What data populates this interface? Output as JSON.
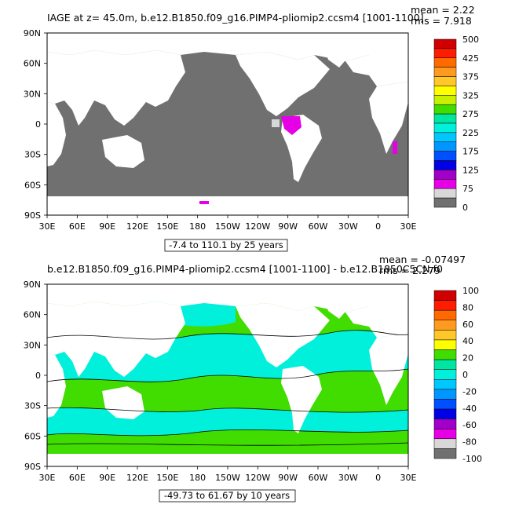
{
  "panels": [
    {
      "id": "top",
      "title": "IAGE at z=   45.0m, b.e12.B1850.f09_g16.PIMP4-pliomip2.ccsm4 [1001-1100]",
      "mean_text": "mean = 2.22",
      "rms_text": "rms = 7.918",
      "range_text": "-7.4 to 110.1 by 25 years",
      "lat_labels": [
        "90N",
        "60N",
        "30N",
        "0",
        "30S",
        "60S",
        "90S"
      ],
      "lon_labels": [
        "30E",
        "60E",
        "90E",
        "120E",
        "150E",
        "180",
        "150W",
        "120W",
        "90W",
        "60W",
        "30W",
        "0",
        "30E"
      ],
      "colorbar": {
        "labels": [
          "500",
          "425",
          "375",
          "325",
          "275",
          "225",
          "175",
          "125",
          "75",
          "0"
        ],
        "colors": [
          "#d00000",
          "#ff1c00",
          "#ff6a00",
          "#ff9a20",
          "#ffc828",
          "#ffff00",
          "#c8f000",
          "#41dc00",
          "#00e6a0",
          "#00f0dc",
          "#00c8ff",
          "#0096ff",
          "#0050ff",
          "#0000e6",
          "#a000c8",
          "#e600e6",
          "#d8d8d8",
          "#707070"
        ]
      }
    },
    {
      "id": "bottom",
      "title": "b.e12.B1850.f09_g16.PIMP4-pliomip2.ccsm4 [1001-1100] - b.e12.B1850C5CN.f0",
      "mean_text": "mean = -0.07497",
      "rms_text": "rms = 2.279",
      "range_text": "-49.73 to 61.67 by 10 years",
      "lat_labels": [
        "90N",
        "60N",
        "30N",
        "0",
        "30S",
        "60S",
        "90S"
      ],
      "lon_labels": [
        "30E",
        "60E",
        "90E",
        "120E",
        "150E",
        "180",
        "150W",
        "120W",
        "90W",
        "60W",
        "30W",
        "0",
        "30E"
      ],
      "colorbar": {
        "labels": [
          "100",
          "80",
          "60",
          "40",
          "20",
          "0",
          "-20",
          "-40",
          "-60",
          "-80",
          "-100"
        ],
        "colors": [
          "#d00000",
          "#ff1c00",
          "#ff6a00",
          "#ff9a20",
          "#ffc828",
          "#ffff00",
          "#41dc00",
          "#00e6a0",
          "#00f0dc",
          "#00c8ff",
          "#0096ff",
          "#0050ff",
          "#0000e6",
          "#a000c8",
          "#e600e6",
          "#d8d8d8",
          "#707070"
        ]
      }
    }
  ],
  "colors": {
    "ocean_top": "#707070",
    "land": "#ffffff",
    "ocean_bottom_a": "#41dc00",
    "ocean_bottom_b": "#00f0dc",
    "contour": "#000000"
  }
}
